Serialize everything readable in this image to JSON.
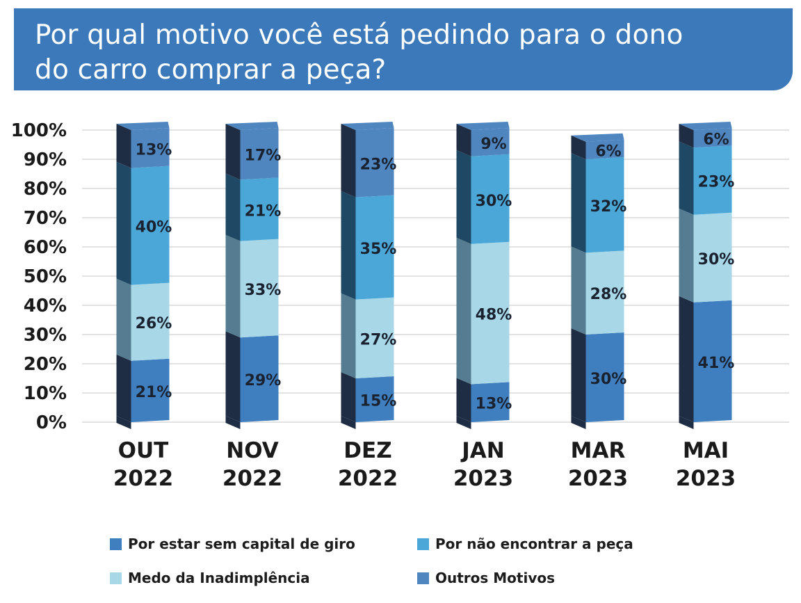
{
  "title": "Por qual motivo você está pedindo para o dono do carro comprar a peça?",
  "title_lines": [
    "Por qual motivo você está pedindo para o dono",
    "do carro comprar a peça?"
  ],
  "colors": {
    "banner": "#3b79bb",
    "capital": "#3f7fc0",
    "capital_side": "#1f2d44",
    "nao_encontrar": "#4aa7d8",
    "nao_encontrar_side": "#1e4863",
    "medo": "#a8d7e7",
    "medo_side": "#557c90",
    "outros": "#4f86c0",
    "outros_side": "#1f2d44",
    "grid": "#d9d9d9"
  },
  "chart_data": {
    "type": "bar",
    "stacked": true,
    "title": "Por qual motivo você está pedindo para o dono do carro comprar a peça?",
    "categories": [
      [
        "OUT",
        "2022"
      ],
      [
        "NOV",
        "2022"
      ],
      [
        "DEZ",
        "2022"
      ],
      [
        "JAN",
        "2023"
      ],
      [
        "MAR",
        "2023"
      ],
      [
        "MAI",
        "2023"
      ]
    ],
    "y_ticks": [
      "0%",
      "10%",
      "20%",
      "30%",
      "40%",
      "50%",
      "60%",
      "70%",
      "80%",
      "90%",
      "100%"
    ],
    "ylim": [
      0,
      100
    ],
    "grid": true,
    "series": [
      {
        "name": "Por estar sem capital de giro",
        "key": "capital",
        "values": [
          21,
          29,
          15,
          13,
          30,
          41
        ],
        "labels": [
          "21%",
          "29%",
          "15%",
          "13%",
          "30%",
          "41%"
        ]
      },
      {
        "name": "Medo da Inadimplência",
        "key": "medo",
        "values": [
          26,
          33,
          27,
          48,
          28,
          30
        ],
        "labels": [
          "26%",
          "33%",
          "27%",
          "48%",
          "28%",
          "30%"
        ]
      },
      {
        "name": "Por não encontrar a peça",
        "key": "nao_encontrar",
        "values": [
          40,
          21,
          35,
          30,
          32,
          23
        ],
        "labels": [
          "40%",
          "21%",
          "35%",
          "30%",
          "32%",
          "23%"
        ]
      },
      {
        "name": "Outros Motivos",
        "key": "outros",
        "values": [
          13,
          17,
          23,
          9,
          6,
          6
        ],
        "labels": [
          "13%",
          "17%",
          "23%",
          "9%",
          "6%",
          "6%"
        ]
      }
    ],
    "legend_position": "bottom"
  },
  "legend": [
    {
      "label": "Por estar sem capital de giro",
      "color": "#3f7fc0"
    },
    {
      "label": "Por não encontrar a peça",
      "color": "#4aa7d8"
    },
    {
      "label": "Medo da Inadimplência",
      "color": "#a8d7e7"
    },
    {
      "label": "Outros Motivos",
      "color": "#4f86c0"
    }
  ]
}
